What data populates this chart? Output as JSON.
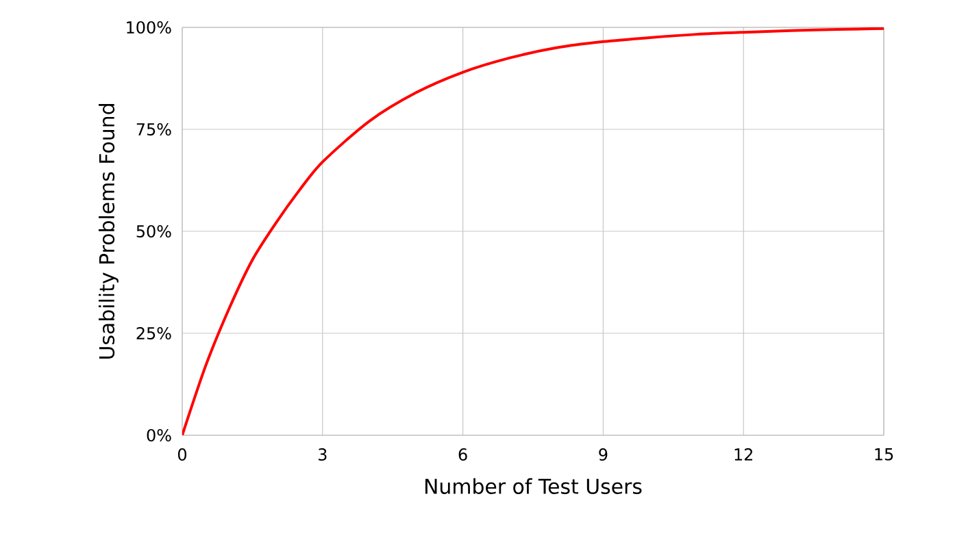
{
  "chart_data": {
    "type": "line",
    "xlabel": "Number of Test Users",
    "ylabel": "Usability Problems Found",
    "x": [
      0,
      0.5,
      1,
      1.5,
      2,
      2.5,
      3,
      4,
      5,
      6,
      7,
      8,
      9,
      10,
      11,
      12,
      13,
      14,
      15
    ],
    "series": [
      {
        "color": "#ff0000",
        "values": [
          0,
          17,
          31,
          43,
          52,
          60,
          67,
          77,
          84,
          89,
          92.5,
          95,
          96.5,
          97.5,
          98.3,
          98.8,
          99.2,
          99.5,
          99.7
        ]
      }
    ],
    "xlim": [
      0,
      15
    ],
    "xticks": [
      0,
      3,
      6,
      9,
      12,
      15
    ],
    "ylim": [
      0,
      100
    ],
    "yticks": [
      {
        "value": 0,
        "label": "0%"
      },
      {
        "value": 25,
        "label": "25%"
      },
      {
        "value": 50,
        "label": "50%"
      },
      {
        "value": 75,
        "label": "75%"
      },
      {
        "value": 100,
        "label": "100%"
      }
    ],
    "grid": true,
    "marker": "none",
    "line_style": "solid"
  }
}
